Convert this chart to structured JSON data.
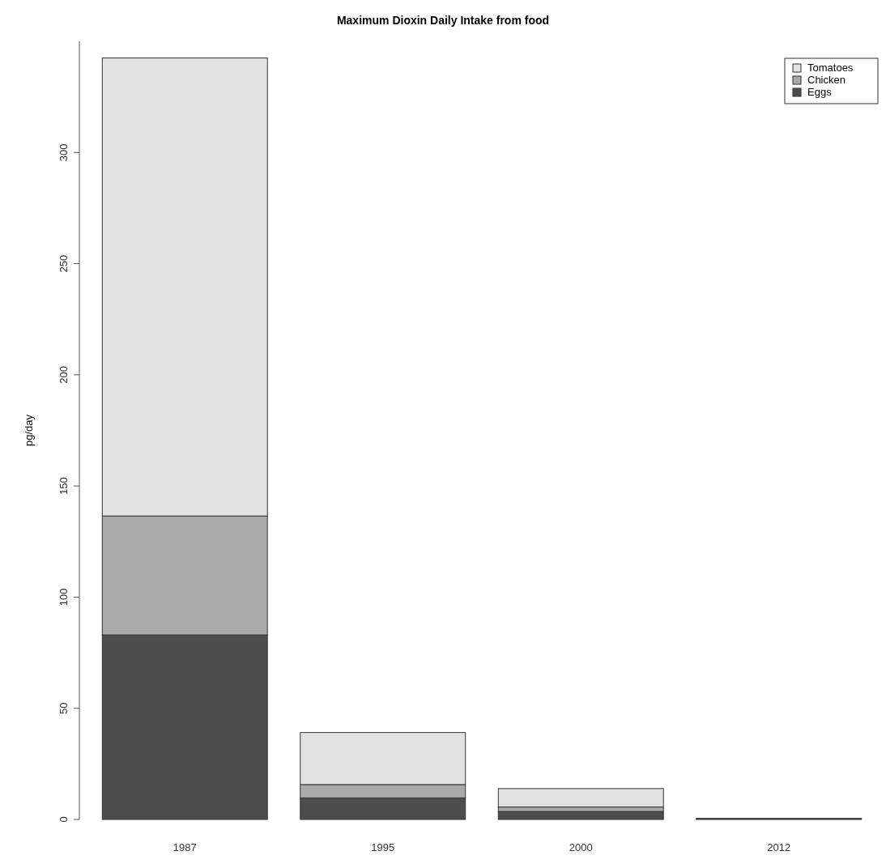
{
  "chart_data": {
    "type": "bar",
    "title": "Maximum Dioxin Daily Intake from food",
    "ylabel": "pg/day",
    "categories": [
      "1987",
      "1995",
      "2000",
      "2012"
    ],
    "stacked": true,
    "series": [
      {
        "name": "Eggs",
        "color": "#4d4d4d",
        "values": [
          83,
          9.7,
          3.6,
          0.5
        ]
      },
      {
        "name": "Chicken",
        "color": "#aaaaaa",
        "values": [
          53.5,
          6,
          2,
          null
        ]
      },
      {
        "name": "Tomatoes",
        "color": "#e2e2e2",
        "values": [
          206,
          23.4,
          8.3,
          null
        ]
      }
    ],
    "ylim": [
      0,
      350
    ],
    "yticks": [
      0,
      50,
      100,
      150,
      200,
      250,
      300
    ],
    "legend": "top right"
  }
}
